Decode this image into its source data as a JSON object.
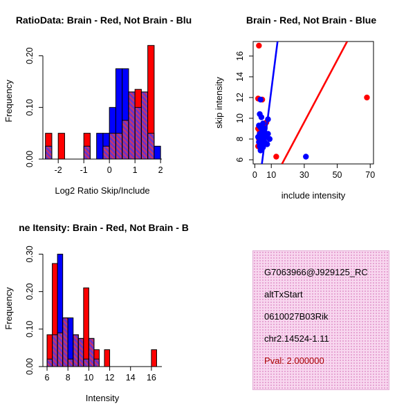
{
  "chart_data": [
    {
      "id": "ratio_hist",
      "type": "bar",
      "title": "RatioData: Brain - Red, Not Brain - Blu",
      "xlabel": "Log2 Ratio Skip/Include",
      "ylabel": "Frequency",
      "xlim": [
        -2.6,
        2.05
      ],
      "ylim": [
        0,
        0.225
      ],
      "xticks": [
        -2,
        -1,
        0,
        1,
        2
      ],
      "xtick_labels": [
        "-2",
        "-1",
        "0",
        "1",
        "2"
      ],
      "yticks": [
        0,
        0.1,
        0.2
      ],
      "ytick_labels": [
        "0.00",
        "0.10",
        "0.20"
      ],
      "bin_width": 0.25,
      "colors": {
        "red": "#FF0000",
        "blue": "#0000FF",
        "overlap_base": "#6633CC",
        "overlap_stripe": "#CC3366"
      },
      "bins": [
        {
          "x": -2.5,
          "red": 0.05,
          "blue": 0.025
        },
        {
          "x": -2.0,
          "red": 0.05,
          "blue": 0
        },
        {
          "x": -1.0,
          "red": 0.05,
          "blue": 0.025
        },
        {
          "x": -0.5,
          "red": 0,
          "blue": 0.05
        },
        {
          "x": -0.25,
          "red": 0.025,
          "blue": 0.05
        },
        {
          "x": 0.0,
          "red": 0.05,
          "blue": 0.1
        },
        {
          "x": 0.25,
          "red": 0.05,
          "blue": 0.175
        },
        {
          "x": 0.5,
          "red": 0.075,
          "blue": 0.175
        },
        {
          "x": 0.75,
          "red": 0.13,
          "blue": 0.13
        },
        {
          "x": 1.0,
          "red": 0.135,
          "blue": 0.1
        },
        {
          "x": 1.25,
          "red": 0.13,
          "blue": 0.13
        },
        {
          "x": 1.5,
          "red": 0.22,
          "blue": 0.05
        },
        {
          "x": 1.75,
          "red": 0,
          "blue": 0.025
        }
      ]
    },
    {
      "id": "scatter",
      "type": "scatter",
      "title": "Brain - Red, Not Brain - Blue",
      "xlabel": "include intensity",
      "ylabel": "skip intensity",
      "xlim": [
        -1,
        72
      ],
      "ylim": [
        5.6,
        17.4
      ],
      "xticks": [
        0,
        10,
        30,
        50,
        70
      ],
      "xtick_labels": [
        "0",
        "10",
        "30",
        "50",
        "70"
      ],
      "yticks": [
        6,
        8,
        10,
        12,
        14,
        16
      ],
      "ytick_labels": [
        "6",
        "8",
        "10",
        "12",
        "14",
        "16"
      ],
      "series": [
        {
          "name": "Brain (red)",
          "color": "#FF0000",
          "points": [
            [
              2.5,
              17.0
            ],
            [
              68,
              12.0
            ],
            [
              2,
              11.9
            ],
            [
              4.5,
              11.8
            ],
            [
              13,
              6.3
            ],
            [
              2,
              9.0
            ],
            [
              3,
              8.7
            ],
            [
              4,
              9.3
            ],
            [
              5,
              8.9
            ],
            [
              6,
              9.1
            ],
            [
              2.5,
              8.0
            ],
            [
              3.5,
              7.1
            ],
            [
              5.5,
              7.9
            ],
            [
              7,
              9.6
            ],
            [
              2,
              7.3
            ]
          ]
        },
        {
          "name": "Not Brain (blue)",
          "color": "#0000FF",
          "points": [
            [
              31,
              6.3
            ],
            [
              2,
              8.2
            ],
            [
              2.5,
              7.7
            ],
            [
              3,
              8.5
            ],
            [
              3,
              7.3
            ],
            [
              3.5,
              9.1
            ],
            [
              4,
              8.1
            ],
            [
              4,
              7.6
            ],
            [
              4.5,
              8.7
            ],
            [
              5,
              8.0
            ],
            [
              5,
              9.5
            ],
            [
              5.5,
              8.3
            ],
            [
              6,
              7.7
            ],
            [
              6,
              9.0
            ],
            [
              6.5,
              8.5
            ],
            [
              7,
              8.2
            ],
            [
              7.5,
              7.5
            ],
            [
              8,
              8.5
            ],
            [
              9,
              8.0
            ],
            [
              3,
              10.4
            ],
            [
              4,
              10.1
            ],
            [
              2.5,
              9.3
            ],
            [
              3.5,
              6.9
            ],
            [
              5,
              7.2
            ],
            [
              8,
              9.9
            ],
            [
              3.5,
              11.8
            ]
          ]
        }
      ],
      "lines": [
        {
          "color": "#0000FF",
          "from": [
            4.3,
            5.6
          ],
          "to": [
            13.8,
            17.4
          ]
        },
        {
          "color": "#FF0000",
          "from": [
            16.5,
            5.6
          ],
          "to": [
            56,
            17.4
          ]
        }
      ]
    },
    {
      "id": "intensity_hist",
      "type": "bar",
      "title": "ne Itensity: Brain - Red, Not Brain - B",
      "xlabel": "Intensity",
      "ylabel": "Frequency",
      "xlim": [
        5.6,
        17.0
      ],
      "ylim": [
        0,
        0.31
      ],
      "xticks": [
        6,
        8,
        10,
        12,
        14,
        16
      ],
      "xtick_labels": [
        "6",
        "8",
        "10",
        "12",
        "14",
        "16"
      ],
      "yticks": [
        0,
        0.1,
        0.2,
        0.3
      ],
      "ytick_labels": [
        "0.00",
        "0.10",
        "0.20",
        "0.30"
      ],
      "bin_width": 0.5,
      "colors": {
        "red": "#FF0000",
        "blue": "#0000FF",
        "overlap_base": "#6633CC",
        "overlap_stripe": "#CC3366"
      },
      "bins": [
        {
          "x": 6.0,
          "red": 0.085,
          "blue": 0.02
        },
        {
          "x": 6.5,
          "red": 0.275,
          "blue": 0.085
        },
        {
          "x": 7.0,
          "red": 0.09,
          "blue": 0.3
        },
        {
          "x": 7.5,
          "red": 0.13,
          "blue": 0.13
        },
        {
          "x": 8.0,
          "red": 0.02,
          "blue": 0.13
        },
        {
          "x": 8.5,
          "red": 0.085,
          "blue": 0.085
        },
        {
          "x": 9.0,
          "red": 0.075,
          "blue": 0.075
        },
        {
          "x": 9.5,
          "red": 0.21,
          "blue": 0.02
        },
        {
          "x": 10.0,
          "red": 0.075,
          "blue": 0.075
        },
        {
          "x": 10.5,
          "red": 0.045,
          "blue": 0.02
        },
        {
          "x": 11.5,
          "red": 0.045,
          "blue": 0
        },
        {
          "x": 16.0,
          "red": 0.045,
          "blue": 0
        }
      ]
    }
  ],
  "info_box": {
    "bg_color": "#f8d7ef",
    "lines": [
      {
        "text": "G7063966@J929125_RC",
        "color": "#000000"
      },
      {
        "text": "altTxStart",
        "color": "#000000"
      },
      {
        "text": "0610027B03Rik",
        "color": "#000000"
      },
      {
        "text": "chr2.14524-1.11",
        "color": "#000000"
      },
      {
        "text": "Pval: 2.000000",
        "color": "#aa0000"
      }
    ]
  }
}
